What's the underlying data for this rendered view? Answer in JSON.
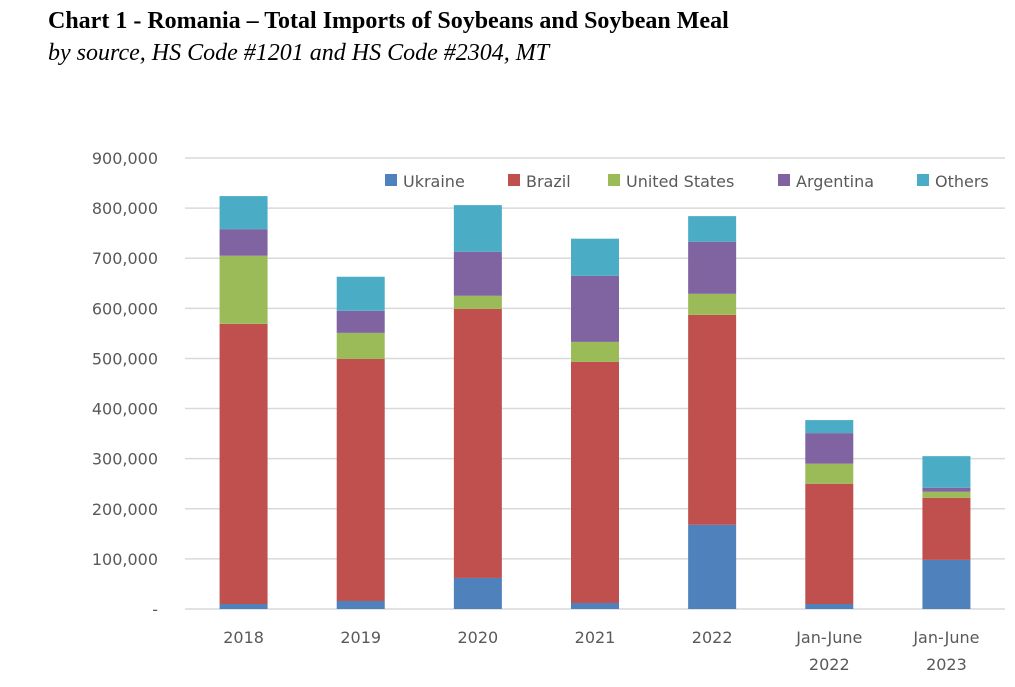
{
  "title": "Chart 1 - Romania – Total Imports of Soybeans and Soybean Meal",
  "subtitle": "by source, HS Code #1201 and HS Code #2304, MT",
  "chart_data": {
    "type": "bar",
    "stacked": true,
    "title": "Chart 1 - Romania – Total Imports of Soybeans and Soybean Meal",
    "subtitle": "by source, HS Code #1201 and HS Code #2304, MT",
    "xlabel": "",
    "ylabel": "",
    "ylim": [
      0,
      900000
    ],
    "yticks": [
      0,
      100000,
      200000,
      300000,
      400000,
      500000,
      600000,
      700000,
      800000,
      900000
    ],
    "ytick_labels": [
      "-",
      "100,000",
      "200,000",
      "300,000",
      "400,000",
      "500,000",
      "600,000",
      "700,000",
      "800,000",
      "900,000"
    ],
    "grid": true,
    "legend_position": "top-right",
    "categories": [
      [
        "2018"
      ],
      [
        "2019"
      ],
      [
        "2020"
      ],
      [
        "2021"
      ],
      [
        "2022"
      ],
      [
        "Jan-June",
        "2022"
      ],
      [
        "Jan-June",
        "2023"
      ]
    ],
    "series": [
      {
        "name": "Ukraine",
        "color": "#4F81BD",
        "values": [
          10000,
          16000,
          62000,
          12000,
          168000,
          10000,
          98000
        ]
      },
      {
        "name": "Brazil",
        "color": "#C0504D",
        "values": [
          559000,
          483000,
          537000,
          481000,
          419000,
          240000,
          124000
        ]
      },
      {
        "name": "United States",
        "color": "#9BBB59",
        "values": [
          136000,
          52000,
          26000,
          40000,
          42000,
          40000,
          12000
        ]
      },
      {
        "name": "Argentina",
        "color": "#8064A2",
        "values": [
          53000,
          44000,
          88000,
          132000,
          104000,
          61000,
          8000
        ]
      },
      {
        "name": "Others",
        "color": "#4BACC6",
        "values": [
          66000,
          68000,
          93000,
          74000,
          51000,
          26000,
          63000
        ]
      }
    ]
  }
}
